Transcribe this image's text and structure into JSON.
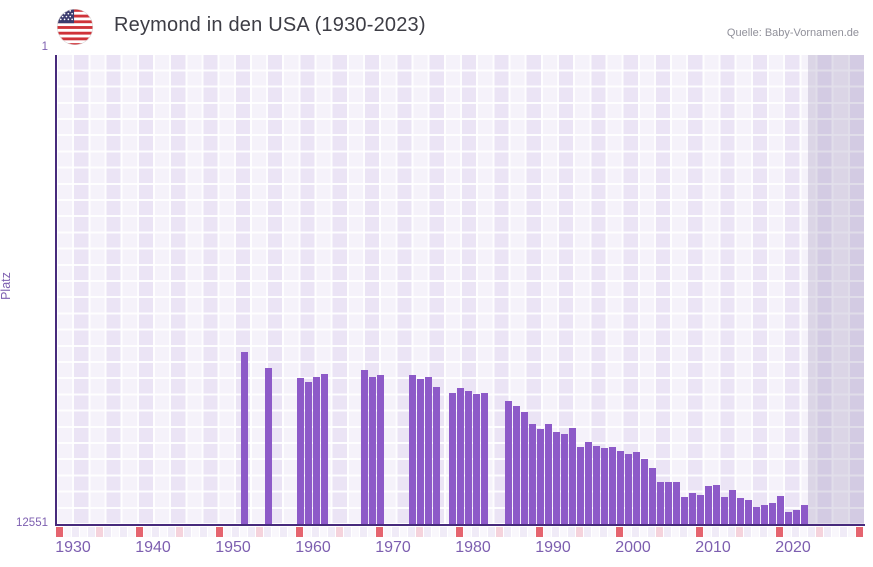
{
  "header": {
    "title": "Reymond in den USA (1930-2023)",
    "source": "Quelle: Baby-Vornamen.de",
    "flag_icon": "us-flag-icon"
  },
  "y_axis": {
    "label": "Platz",
    "top_tick": "1",
    "bottom_tick": "12551"
  },
  "chart_data": {
    "type": "bar",
    "title": "Reymond in den USA (1930-2023)",
    "xlabel": "",
    "ylabel": "Platz",
    "x_range": [
      1930,
      2030
    ],
    "data_year_range": [
      1930,
      2023
    ],
    "future_region_start": 2024,
    "y_range": [
      1,
      12551
    ],
    "y_axis_inverted_rank_scale": true,
    "grid": true,
    "legend_position": "none",
    "x_ticks": [
      1930,
      1940,
      1950,
      1960,
      1970,
      1980,
      1990,
      2000,
      2010,
      2020
    ],
    "bar_color": "#8d5ac8",
    "axis_color": "#472a7c",
    "tick_color": "#7d5fb0",
    "decade_marker_color": "#e5646f",
    "half_decade_marker_color": "#f5d3dc",
    "strip_cell_colors": [
      "#f0ebf7",
      "#f9f7fc"
    ],
    "points": [
      {
        "year": 1953,
        "rank": 7940
      },
      {
        "year": 1956,
        "rank": 8365
      },
      {
        "year": 1960,
        "rank": 8630
      },
      {
        "year": 1961,
        "rank": 8740
      },
      {
        "year": 1962,
        "rank": 8590
      },
      {
        "year": 1963,
        "rank": 8520
      },
      {
        "year": 1968,
        "rank": 8410
      },
      {
        "year": 1969,
        "rank": 8600
      },
      {
        "year": 1970,
        "rank": 8545
      },
      {
        "year": 1974,
        "rank": 8555
      },
      {
        "year": 1975,
        "rank": 8660
      },
      {
        "year": 1976,
        "rank": 8590
      },
      {
        "year": 1977,
        "rank": 8855
      },
      {
        "year": 1979,
        "rank": 9015
      },
      {
        "year": 1980,
        "rank": 8900
      },
      {
        "year": 1981,
        "rank": 8965
      },
      {
        "year": 1982,
        "rank": 9060
      },
      {
        "year": 1983,
        "rank": 9035
      },
      {
        "year": 1986,
        "rank": 9240
      },
      {
        "year": 1987,
        "rank": 9370
      },
      {
        "year": 1988,
        "rank": 9525
      },
      {
        "year": 1989,
        "rank": 9860
      },
      {
        "year": 1990,
        "rank": 9995
      },
      {
        "year": 1991,
        "rank": 9860
      },
      {
        "year": 1992,
        "rank": 10060
      },
      {
        "year": 1993,
        "rank": 10110
      },
      {
        "year": 1994,
        "rank": 9965
      },
      {
        "year": 1995,
        "rank": 10460
      },
      {
        "year": 1996,
        "rank": 10325
      },
      {
        "year": 1997,
        "rank": 10430
      },
      {
        "year": 1998,
        "rank": 10485
      },
      {
        "year": 1999,
        "rank": 10460
      },
      {
        "year": 2000,
        "rank": 10585
      },
      {
        "year": 2001,
        "rank": 10655
      },
      {
        "year": 2002,
        "rank": 10590
      },
      {
        "year": 2003,
        "rank": 10795
      },
      {
        "year": 2004,
        "rank": 11025
      },
      {
        "year": 2005,
        "rank": 11390
      },
      {
        "year": 2006,
        "rank": 11405
      },
      {
        "year": 2007,
        "rank": 11405
      },
      {
        "year": 2008,
        "rank": 11790
      },
      {
        "year": 2009,
        "rank": 11685
      },
      {
        "year": 2010,
        "rank": 11745
      },
      {
        "year": 2011,
        "rank": 11510
      },
      {
        "year": 2012,
        "rank": 11490
      },
      {
        "year": 2013,
        "rank": 11790
      },
      {
        "year": 2014,
        "rank": 11615
      },
      {
        "year": 2015,
        "rank": 11840
      },
      {
        "year": 2016,
        "rank": 11880
      },
      {
        "year": 2017,
        "rank": 12060
      },
      {
        "year": 2018,
        "rank": 12015
      },
      {
        "year": 2019,
        "rank": 11970
      },
      {
        "year": 2020,
        "rank": 11775
      },
      {
        "year": 2021,
        "rank": 12210
      },
      {
        "year": 2022,
        "rank": 12150
      },
      {
        "year": 2023,
        "rank": 12015
      }
    ]
  }
}
